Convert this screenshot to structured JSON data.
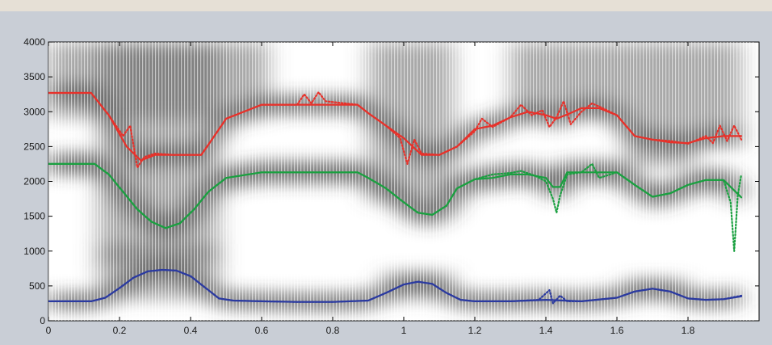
{
  "chart_data": {
    "type": "line",
    "title": "",
    "xlabel": "",
    "ylabel": "",
    "xlim": [
      0,
      2
    ],
    "ylim": [
      0,
      4000
    ],
    "x_ticks": [
      0,
      0.2,
      0.4,
      0.6,
      0.8,
      1,
      1.2,
      1.4,
      1.6,
      1.8
    ],
    "x_tick_labels": [
      "0",
      "0.2",
      "0.4",
      "0.6",
      "0.8",
      "1",
      "1.2",
      "1.4",
      "1.6",
      "1.8"
    ],
    "y_ticks": [
      0,
      500,
      1000,
      1500,
      2000,
      2500,
      3000,
      3500,
      4000
    ],
    "y_tick_labels": [
      "0",
      "500",
      "1000",
      "1500",
      "2000",
      "2500",
      "3000",
      "3500",
      "4000"
    ],
    "grid": false,
    "background": "spectrogram",
    "series": [
      {
        "color": "#e8312a",
        "style": "solid",
        "x": [
          0,
          0.12,
          0.17,
          0.22,
          0.26,
          0.3,
          0.35,
          0.43,
          0.46,
          0.5,
          0.6,
          0.7,
          0.78,
          0.87,
          0.9,
          0.95,
          1.0,
          1.05,
          1.1,
          1.15,
          1.2,
          1.25,
          1.3,
          1.35,
          1.4,
          1.43,
          1.46,
          1.5,
          1.55,
          1.6,
          1.65,
          1.7,
          1.75,
          1.8,
          1.85,
          1.9,
          1.95
        ],
        "values": [
          3270,
          3270,
          2950,
          2500,
          2300,
          2380,
          2380,
          2380,
          2600,
          2900,
          3100,
          3100,
          3100,
          3100,
          2980,
          2800,
          2620,
          2380,
          2380,
          2500,
          2750,
          2800,
          2920,
          3000,
          2950,
          2900,
          2960,
          3050,
          3050,
          2950,
          2650,
          2600,
          2560,
          2550,
          2620,
          2650,
          2650
        ]
      },
      {
        "color": "#e8312a",
        "style": "dotted",
        "x": [
          0,
          0.12,
          0.17,
          0.21,
          0.23,
          0.25,
          0.27,
          0.3,
          0.35,
          0.43,
          0.46,
          0.5,
          0.6,
          0.7,
          0.72,
          0.74,
          0.76,
          0.78,
          0.87,
          0.9,
          0.95,
          0.99,
          1.01,
          1.03,
          1.05,
          1.1,
          1.15,
          1.2,
          1.22,
          1.25,
          1.3,
          1.33,
          1.36,
          1.39,
          1.41,
          1.43,
          1.45,
          1.47,
          1.5,
          1.53,
          1.56,
          1.6,
          1.65,
          1.7,
          1.75,
          1.8,
          1.85,
          1.87,
          1.89,
          1.91,
          1.93,
          1.95
        ],
        "values": [
          3270,
          3270,
          2950,
          2650,
          2800,
          2200,
          2350,
          2400,
          2380,
          2380,
          2600,
          2900,
          3100,
          3100,
          3250,
          3120,
          3280,
          3150,
          3100,
          2980,
          2800,
          2620,
          2250,
          2600,
          2400,
          2380,
          2500,
          2720,
          2900,
          2780,
          2920,
          3100,
          2950,
          3020,
          2780,
          2920,
          3150,
          2820,
          3000,
          3120,
          3050,
          2950,
          2650,
          2600,
          2580,
          2540,
          2650,
          2550,
          2800,
          2580,
          2800,
          2600
        ]
      },
      {
        "color": "#1aa040",
        "style": "solid",
        "x": [
          0,
          0.13,
          0.17,
          0.21,
          0.25,
          0.29,
          0.33,
          0.37,
          0.41,
          0.45,
          0.5,
          0.6,
          0.7,
          0.87,
          0.9,
          0.95,
          1.0,
          1.04,
          1.08,
          1.12,
          1.15,
          1.2,
          1.25,
          1.3,
          1.35,
          1.4,
          1.42,
          1.44,
          1.46,
          1.5,
          1.55,
          1.6,
          1.65,
          1.7,
          1.75,
          1.8,
          1.85,
          1.9,
          1.93,
          1.95
        ],
        "values": [
          2250,
          2250,
          2100,
          1850,
          1600,
          1420,
          1330,
          1400,
          1600,
          1850,
          2050,
          2130,
          2130,
          2130,
          2050,
          1900,
          1700,
          1550,
          1520,
          1650,
          1900,
          2030,
          2050,
          2100,
          2100,
          2050,
          1920,
          1920,
          2130,
          2130,
          2130,
          2130,
          1950,
          1780,
          1830,
          1950,
          2020,
          2020,
          1870,
          1770
        ]
      },
      {
        "color": "#1aa040",
        "style": "dotted",
        "x": [
          0,
          0.13,
          0.17,
          0.21,
          0.25,
          0.29,
          0.33,
          0.37,
          0.41,
          0.45,
          0.5,
          0.6,
          0.7,
          0.87,
          0.9,
          0.95,
          1.0,
          1.04,
          1.08,
          1.12,
          1.15,
          1.2,
          1.25,
          1.3,
          1.33,
          1.37,
          1.4,
          1.42,
          1.43,
          1.44,
          1.46,
          1.5,
          1.53,
          1.55,
          1.6,
          1.65,
          1.7,
          1.75,
          1.8,
          1.85,
          1.9,
          1.92,
          1.93,
          1.94,
          1.95
        ],
        "values": [
          2250,
          2250,
          2100,
          1850,
          1600,
          1420,
          1330,
          1400,
          1600,
          1850,
          2050,
          2130,
          2130,
          2130,
          2050,
          1900,
          1700,
          1550,
          1520,
          1650,
          1900,
          2030,
          2100,
          2120,
          2150,
          2080,
          2000,
          1750,
          1550,
          1800,
          2100,
          2130,
          2250,
          2050,
          2130,
          1950,
          1780,
          1830,
          1950,
          2020,
          2020,
          1700,
          1000,
          1800,
          2100
        ]
      },
      {
        "color": "#2b3aa0",
        "style": "solid",
        "x": [
          0,
          0.12,
          0.16,
          0.2,
          0.24,
          0.28,
          0.32,
          0.36,
          0.4,
          0.44,
          0.48,
          0.52,
          0.6,
          0.7,
          0.8,
          0.9,
          0.95,
          1.0,
          1.04,
          1.08,
          1.12,
          1.16,
          1.2,
          1.3,
          1.4,
          1.5,
          1.6,
          1.65,
          1.7,
          1.75,
          1.8,
          1.85,
          1.9,
          1.95
        ],
        "values": [
          280,
          280,
          330,
          470,
          620,
          710,
          730,
          720,
          640,
          480,
          320,
          290,
          280,
          270,
          270,
          290,
          400,
          520,
          560,
          530,
          400,
          300,
          280,
          280,
          300,
          280,
          330,
          420,
          460,
          420,
          320,
          300,
          310,
          350
        ]
      },
      {
        "color": "#2b3aa0",
        "style": "dotted",
        "x": [
          0,
          0.12,
          0.16,
          0.2,
          0.24,
          0.28,
          0.32,
          0.36,
          0.4,
          0.44,
          0.48,
          0.52,
          0.6,
          0.7,
          0.8,
          0.9,
          0.95,
          1.0,
          1.04,
          1.08,
          1.12,
          1.16,
          1.2,
          1.3,
          1.38,
          1.41,
          1.42,
          1.44,
          1.46,
          1.5,
          1.6,
          1.65,
          1.7,
          1.75,
          1.8,
          1.85,
          1.9,
          1.95
        ],
        "values": [
          280,
          280,
          330,
          470,
          620,
          710,
          730,
          720,
          640,
          480,
          320,
          290,
          280,
          270,
          270,
          290,
          400,
          520,
          560,
          530,
          400,
          300,
          280,
          280,
          300,
          440,
          250,
          360,
          280,
          280,
          330,
          420,
          460,
          420,
          320,
          300,
          310,
          360
        ]
      }
    ]
  }
}
